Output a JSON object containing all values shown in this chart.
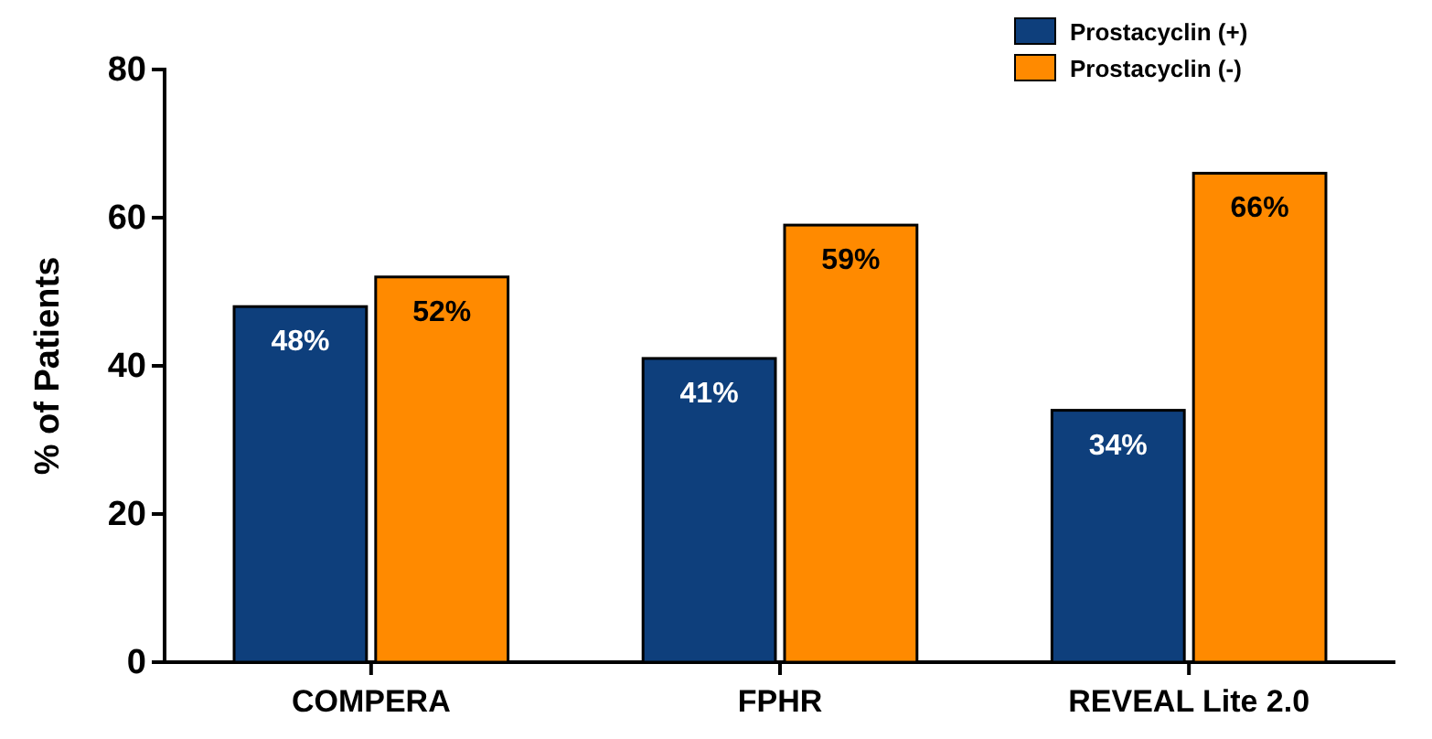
{
  "chart_data": {
    "type": "bar",
    "ylabel": "% of Patients",
    "categories": [
      "COMPERA",
      "FPHR",
      "REVEAL Lite 2.0"
    ],
    "series": [
      {
        "name": "Prostacyclin (+)",
        "color": "#0e3f7c",
        "values": [
          48,
          41,
          34
        ],
        "value_labels": [
          "48%",
          "41%",
          "34%"
        ]
      },
      {
        "name": "Prostacyclin (-)",
        "color": "#ff8a00",
        "values": [
          52,
          59,
          66
        ],
        "value_labels": [
          "52%",
          "59%",
          "66%"
        ]
      }
    ],
    "ylim": [
      0,
      80
    ],
    "yticks": [
      0,
      20,
      40,
      60,
      80
    ],
    "grid": false,
    "legend": "top right"
  }
}
